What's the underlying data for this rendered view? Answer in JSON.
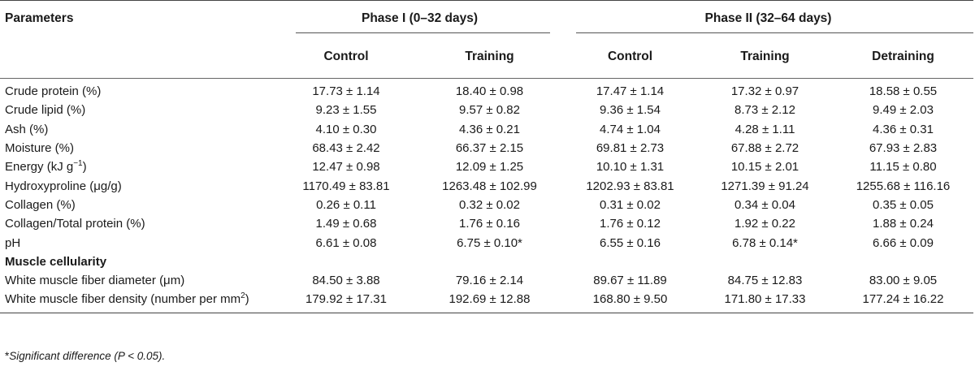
{
  "header": {
    "parameters": "Parameters",
    "phase1": "Phase I (0–32 days)",
    "phase2": "Phase II (32–64 days)",
    "columns": [
      "Control",
      "Training",
      "Control",
      "Training",
      "Detraining"
    ]
  },
  "rows": [
    {
      "label": "Crude protein (%)",
      "values": [
        "17.73 ± 1.14",
        "18.40 ± 0.98",
        "17.47 ± 1.14",
        "17.32 ± 0.97",
        "18.58 ± 0.55"
      ]
    },
    {
      "label": "Crude lipid (%)",
      "values": [
        "9.23 ± 1.55",
        "9.57 ± 0.82",
        "9.36 ± 1.54",
        "8.73 ± 2.12",
        "9.49 ± 2.03"
      ]
    },
    {
      "label": "Ash (%)",
      "values": [
        "4.10 ± 0.30",
        "4.36 ± 0.21",
        "4.74 ± 1.04",
        "4.28 ± 1.11",
        "4.36 ± 0.31"
      ]
    },
    {
      "label": "Moisture (%)",
      "values": [
        "68.43 ± 2.42",
        "66.37 ± 2.15",
        "69.81 ± 2.73",
        "67.88 ± 2.72",
        "67.93 ± 2.83"
      ]
    },
    {
      "label_main": "Energy (kJ g",
      "label_sup": "−1",
      "label_end": ")",
      "values": [
        "12.47 ± 0.98",
        "12.09 ± 1.25",
        "10.10 ± 1.31",
        "10.15 ± 2.01",
        "11.15 ± 0.80"
      ]
    },
    {
      "label": "Hydroxyproline (μg/g)",
      "values": [
        "1170.49 ± 83.81",
        "1263.48 ± 102.99",
        "1202.93 ± 83.81",
        "1271.39 ± 91.24",
        "1255.68 ± 116.16"
      ]
    },
    {
      "label": "Collagen (%)",
      "values": [
        "0.26 ± 0.11",
        "0.32 ± 0.02",
        "0.31 ± 0.02",
        "0.34 ± 0.04",
        "0.35 ± 0.05"
      ]
    },
    {
      "label": "Collagen/Total protein (%)",
      "values": [
        "1.49 ± 0.68",
        "1.76 ± 0.16",
        "1.76 ± 0.12",
        "1.92 ± 0.22",
        "1.88 ± 0.24"
      ]
    },
    {
      "label": "pH",
      "values": [
        "6.61 ± 0.08",
        "6.75 ± 0.10*",
        "6.55 ± 0.16",
        "6.78 ± 0.14*",
        "6.66 ± 0.09"
      ]
    }
  ],
  "section2": "Muscle cellularity",
  "rows2": [
    {
      "label": "White muscle fiber diameter (μm)",
      "values": [
        "84.50 ± 3.88",
        "79.16 ± 2.14",
        "89.67 ± 11.89",
        "84.75 ± 12.83",
        "83.00 ± 9.05"
      ]
    },
    {
      "label_main": "White muscle fiber density (number per mm",
      "label_sup": "2",
      "label_end": ")",
      "values": [
        "179.92 ± 17.31",
        "192.69 ± 12.88",
        "168.80 ± 9.50",
        "171.80 ± 17.33",
        "177.24 ± 16.22"
      ]
    }
  ],
  "footnote": {
    "mark": "*",
    "text": "Significant difference (P < 0.05)."
  }
}
